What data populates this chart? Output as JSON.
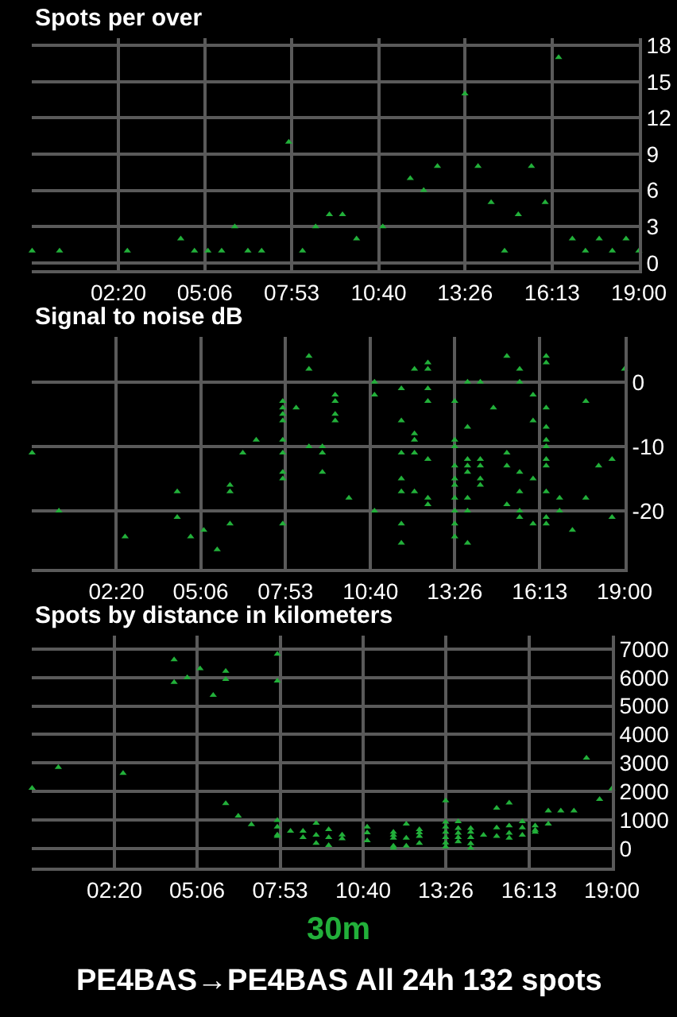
{
  "chart_data": [
    {
      "type": "scatter",
      "title": "Spots per over",
      "color": "#22b03a",
      "marker": "triangle",
      "grid": true,
      "x": [
        -0.43,
        0.45,
        2.62,
        4.33,
        4.77,
        5.2,
        5.64,
        6.06,
        6.48,
        6.92,
        7.79,
        8.23,
        8.65,
        9.09,
        9.51,
        9.96,
        10.8,
        11.68,
        12.11,
        12.55,
        13.43,
        13.85,
        14.27,
        14.7,
        15.14,
        15.56,
        16.0,
        16.43,
        16.87,
        17.29,
        17.73,
        18.15,
        18.59,
        19.0
      ],
      "values": [
        1,
        1,
        1,
        2,
        1,
        1,
        1,
        3,
        1,
        1,
        10,
        1,
        3,
        4,
        4,
        2,
        3,
        7,
        6,
        8,
        14,
        8,
        5,
        1,
        4,
        8,
        5,
        17,
        2,
        1,
        2,
        1,
        2,
        1
      ],
      "xlim": [
        -0.44,
        19.0
      ],
      "ylim": [
        -0.6,
        18.6
      ],
      "xticks": [
        {
          "value": 2.3333,
          "label": "02:20"
        },
        {
          "value": 5.1,
          "label": "05:06"
        },
        {
          "value": 7.8833,
          "label": "07:53"
        },
        {
          "value": 10.6667,
          "label": "10:40"
        },
        {
          "value": 13.4333,
          "label": "13:26"
        },
        {
          "value": 16.2222,
          "label": "16:13"
        },
        {
          "value": 19.0,
          "label": "19:00"
        }
      ],
      "yticks": [
        0,
        3,
        6,
        9,
        12,
        15,
        18
      ]
    },
    {
      "type": "scatter",
      "title": "Signal to noise dB",
      "color": "#22b03a",
      "marker": "triangle",
      "grid": true,
      "x": [
        -0.43,
        0.45,
        2.62,
        4.33,
        4.33,
        4.77,
        5.2,
        5.64,
        6.06,
        6.06,
        6.06,
        6.48,
        6.92,
        7.79,
        7.79,
        7.79,
        7.79,
        7.79,
        7.79,
        7.79,
        7.79,
        7.79,
        8.23,
        8.65,
        8.65,
        8.65,
        9.09,
        9.09,
        9.09,
        9.51,
        9.51,
        9.51,
        9.51,
        9.96,
        10.8,
        10.8,
        10.8,
        11.68,
        11.68,
        11.68,
        11.68,
        11.68,
        11.68,
        11.68,
        12.11,
        12.11,
        12.11,
        12.11,
        12.11,
        12.55,
        12.55,
        12.55,
        12.55,
        12.55,
        12.55,
        12.55,
        13.43,
        13.43,
        13.43,
        13.43,
        13.43,
        13.43,
        13.43,
        13.43,
        13.43,
        13.43,
        13.85,
        13.85,
        13.85,
        13.85,
        13.85,
        13.85,
        13.85,
        13.85,
        14.27,
        14.27,
        14.27,
        14.27,
        14.27,
        14.7,
        15.14,
        15.14,
        15.14,
        15.14,
        15.56,
        15.56,
        15.56,
        15.56,
        15.56,
        15.56,
        16.0,
        16.0,
        16.0,
        16.0,
        16.43,
        16.43,
        16.43,
        16.43,
        16.43,
        16.43,
        16.43,
        16.43,
        16.43,
        16.43,
        16.43,
        16.87,
        16.87,
        17.29,
        17.73,
        17.73,
        18.15,
        18.59,
        18.59,
        19.0
      ],
      "values": [
        -11,
        -20,
        -24,
        -17,
        -21,
        -24,
        -23,
        -26,
        -16,
        -17,
        -22,
        -11,
        -9,
        -3,
        -4,
        -5,
        -6,
        -9,
        -11,
        -14,
        -15,
        -22,
        -4,
        4,
        2,
        -10,
        -10,
        -11,
        -14,
        -2,
        -3,
        -5,
        -6,
        -18,
        0,
        -2,
        -20,
        -1,
        -6,
        -11,
        -15,
        -17,
        -22,
        -25,
        2,
        -8,
        -9,
        -11,
        -17,
        3,
        2,
        -1,
        -3,
        -12,
        -18,
        -19,
        -3,
        -9,
        -10,
        -13,
        -15,
        -16,
        -18,
        -20,
        -22,
        -24,
        0,
        -7,
        -12,
        -13,
        -14,
        -18,
        -20,
        -25,
        0,
        -12,
        -13,
        -15,
        -16,
        -4,
        4,
        -11,
        -13,
        -19,
        2,
        0,
        -14,
        -17,
        -20,
        -21,
        -2,
        -6,
        -15,
        -22,
        4,
        3,
        -4,
        -7,
        -9,
        -10,
        -12,
        -13,
        -17,
        -21,
        -22,
        -18,
        -20,
        -23,
        -3,
        -18,
        -13,
        -12,
        -21,
        2
      ],
      "xlim": [
        -0.44,
        19.0
      ],
      "ylim": [
        -29,
        7
      ],
      "xticks": [
        {
          "value": 2.3333,
          "label": "02:20"
        },
        {
          "value": 5.1,
          "label": "05:06"
        },
        {
          "value": 7.8833,
          "label": "07:53"
        },
        {
          "value": 10.6667,
          "label": "10:40"
        },
        {
          "value": 13.4333,
          "label": "13:26"
        },
        {
          "value": 16.2222,
          "label": "16:13"
        },
        {
          "value": 19.0,
          "label": "19:00"
        }
      ],
      "yticks": [
        0,
        -10,
        -20
      ]
    },
    {
      "type": "scatter",
      "title": "Spots by distance in kilometers",
      "color": "#22b03a",
      "marker": "triangle",
      "grid": true,
      "x": [
        -0.43,
        0.45,
        2.62,
        4.33,
        4.33,
        4.77,
        5.2,
        5.64,
        6.06,
        6.06,
        6.06,
        6.48,
        6.92,
        7.79,
        7.79,
        7.79,
        7.79,
        7.79,
        7.79,
        8.23,
        8.65,
        8.65,
        9.09,
        9.09,
        9.09,
        9.51,
        9.51,
        9.51,
        9.96,
        9.96,
        10.8,
        10.8,
        10.8,
        11.68,
        11.68,
        11.68,
        11.68,
        11.68,
        12.11,
        12.11,
        12.11,
        12.55,
        12.55,
        12.55,
        12.55,
        13.43,
        13.43,
        13.43,
        13.43,
        13.43,
        13.43,
        13.43,
        13.85,
        13.85,
        13.85,
        13.85,
        13.85,
        14.27,
        14.27,
        14.27,
        14.27,
        14.27,
        14.7,
        15.14,
        15.14,
        15.14,
        15.56,
        15.56,
        15.56,
        15.56,
        16.0,
        16.0,
        16.0,
        16.43,
        16.43,
        16.43,
        16.87,
        16.87,
        17.29,
        17.73,
        18.15,
        18.59,
        19.0
      ],
      "values": [
        2120,
        2850,
        2640,
        6630,
        5830,
        6000,
        6310,
        5380,
        6220,
        5940,
        1580,
        1140,
        840,
        6820,
        5880,
        990,
        760,
        480,
        430,
        610,
        610,
        390,
        890,
        470,
        190,
        670,
        390,
        110,
        480,
        350,
        760,
        560,
        280,
        580,
        470,
        370,
        90,
        20,
        860,
        370,
        90,
        670,
        560,
        430,
        190,
        1680,
        930,
        760,
        580,
        390,
        200,
        60,
        950,
        710,
        540,
        390,
        240,
        710,
        580,
        390,
        170,
        20,
        470,
        1420,
        730,
        430,
        1600,
        800,
        540,
        370,
        950,
        730,
        470,
        800,
        650,
        580,
        1320,
        860,
        1320,
        1320,
        3180,
        1730,
        2100
      ],
      "xlim": [
        -0.44,
        19.0
      ],
      "ylim": [
        -670,
        7470
      ],
      "xticks": [
        {
          "value": 2.3333,
          "label": "02:20"
        },
        {
          "value": 5.1,
          "label": "05:06"
        },
        {
          "value": 7.8833,
          "label": "07:53"
        },
        {
          "value": 10.6667,
          "label": "10:40"
        },
        {
          "value": 13.4333,
          "label": "13:26"
        },
        {
          "value": 16.2222,
          "label": "16:13"
        },
        {
          "value": 19.0,
          "label": "19:00"
        }
      ],
      "yticks": [
        0,
        1000,
        2000,
        3000,
        4000,
        5000,
        6000,
        7000
      ],
      "annotations": [
        "30m",
        "PE4BAS→PE4BAS All 24h 132 spots"
      ]
    }
  ]
}
